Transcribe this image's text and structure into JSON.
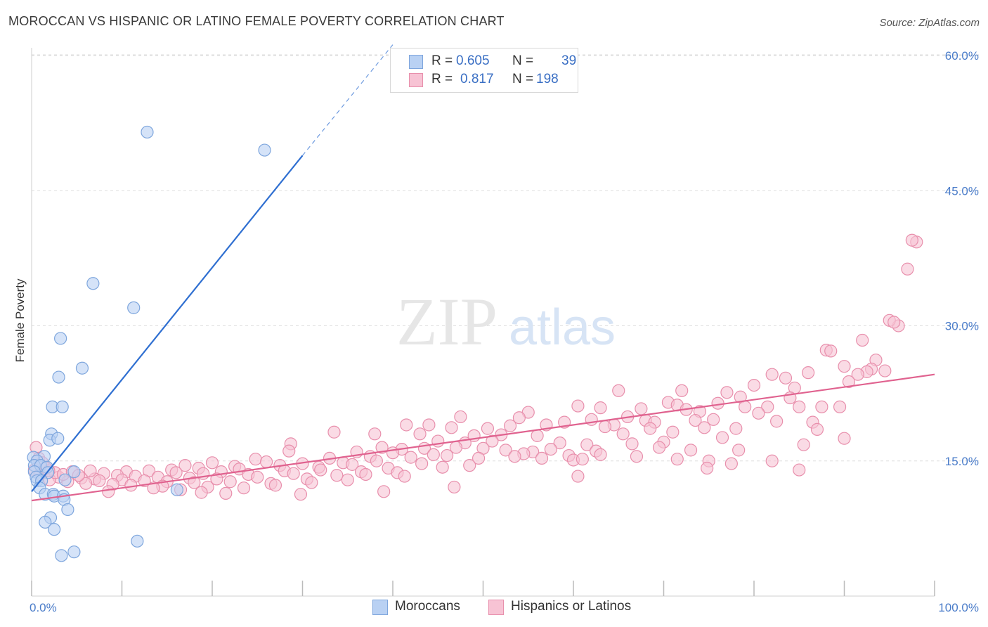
{
  "title": "MOROCCAN VS HISPANIC OR LATINO FEMALE POVERTY CORRELATION CHART",
  "source": "Source: ZipAtlas.com",
  "watermark": {
    "zip": "ZIP",
    "atlas": "atlas"
  },
  "colors": {
    "blue_fill": "#b9d1f3",
    "blue_stroke": "#7ea6dd",
    "blue_line": "#2f6fd1",
    "pink_fill": "#f7c3d4",
    "pink_stroke": "#e88fac",
    "pink_line": "#e0628f",
    "tick_text": "#4a7cc9",
    "grid": "#dddddd"
  },
  "legend": {
    "rows": [
      {
        "r_label": "R =",
        "r_value": "0.605",
        "n_label": "N =",
        "n_value": "39"
      },
      {
        "r_label": "R =",
        "r_value": "0.817",
        "n_label": "N =",
        "n_value": "198"
      }
    ]
  },
  "bottom_legend": [
    "Moroccans",
    "Hispanics or Latinos"
  ],
  "chart_data": {
    "type": "scatter",
    "title": "MOROCCAN VS HISPANIC OR LATINO FEMALE POVERTY CORRELATION CHART",
    "xlabel": "",
    "ylabel": "Female Poverty",
    "xlim": [
      0,
      100
    ],
    "ylim": [
      0,
      60
    ],
    "x_tick_labels": [
      "0.0%",
      "100.0%"
    ],
    "y_ticks": [
      15,
      30,
      45,
      60
    ],
    "y_tick_labels": [
      "15.0%",
      "30.0%",
      "45.0%",
      "60.0%"
    ],
    "grid": "horizontal dashed",
    "legend_position": "top-center",
    "series": [
      {
        "name": "Moroccans",
        "color": "#b9d1f3",
        "r": 0.605,
        "n": 39,
        "trend": {
          "x": [
            0.0,
            30.0
          ],
          "y": [
            11.6,
            48.9
          ],
          "dashed_to": [
            40.0,
            61.2
          ]
        },
        "points": [
          [
            12.8,
            51.5
          ],
          [
            25.8,
            49.5
          ],
          [
            6.8,
            34.7
          ],
          [
            11.3,
            32.0
          ],
          [
            3.2,
            28.6
          ],
          [
            5.6,
            25.3
          ],
          [
            3.0,
            24.3
          ],
          [
            2.3,
            21.0
          ],
          [
            3.4,
            21.0
          ],
          [
            2.2,
            18.0
          ],
          [
            2.0,
            17.3
          ],
          [
            2.9,
            17.5
          ],
          [
            1.4,
            15.5
          ],
          [
            0.2,
            15.4
          ],
          [
            0.6,
            15.0
          ],
          [
            0.3,
            14.5
          ],
          [
            1.0,
            14.5
          ],
          [
            1.7,
            14.3
          ],
          [
            0.3,
            13.8
          ],
          [
            1.8,
            13.7
          ],
          [
            4.7,
            13.8
          ],
          [
            0.5,
            13.2
          ],
          [
            0.6,
            12.8
          ],
          [
            1.1,
            12.8
          ],
          [
            3.7,
            12.9
          ],
          [
            0.9,
            12.0
          ],
          [
            1.5,
            11.3
          ],
          [
            2.4,
            11.3
          ],
          [
            2.5,
            11.1
          ],
          [
            3.5,
            11.1
          ],
          [
            3.6,
            10.7
          ],
          [
            4.0,
            9.6
          ],
          [
            2.1,
            8.7
          ],
          [
            1.5,
            8.2
          ],
          [
            2.5,
            7.4
          ],
          [
            11.7,
            6.1
          ],
          [
            4.7,
            4.9
          ],
          [
            3.3,
            4.5
          ],
          [
            16.1,
            11.8
          ]
        ]
      },
      {
        "name": "Hispanics or Latinos",
        "color": "#f7c3d4",
        "r": 0.817,
        "n": 198,
        "trend": {
          "x": [
            0.0,
            100.0
          ],
          "y": [
            10.6,
            24.6
          ]
        },
        "points": [
          [
            98.0,
            39.3
          ],
          [
            97.5,
            39.5
          ],
          [
            97.0,
            36.3
          ],
          [
            96.0,
            30.0
          ],
          [
            95.0,
            30.6
          ],
          [
            95.5,
            30.4
          ],
          [
            92.0,
            28.4
          ],
          [
            88.0,
            27.3
          ],
          [
            88.5,
            27.2
          ],
          [
            93.5,
            26.2
          ],
          [
            90.0,
            25.5
          ],
          [
            93.0,
            25.2
          ],
          [
            94.5,
            25.0
          ],
          [
            92.5,
            24.9
          ],
          [
            91.5,
            24.6
          ],
          [
            86.0,
            24.8
          ],
          [
            82.0,
            24.6
          ],
          [
            83.5,
            24.2
          ],
          [
            80.0,
            23.4
          ],
          [
            84.5,
            23.1
          ],
          [
            90.5,
            23.8
          ],
          [
            65.0,
            22.8
          ],
          [
            72.0,
            22.8
          ],
          [
            77.0,
            22.6
          ],
          [
            78.5,
            22.1
          ],
          [
            84.0,
            22.0
          ],
          [
            70.5,
            21.5
          ],
          [
            71.5,
            21.2
          ],
          [
            76.0,
            21.4
          ],
          [
            79.0,
            21.0
          ],
          [
            81.5,
            21.0
          ],
          [
            85.0,
            21.0
          ],
          [
            87.5,
            21.0
          ],
          [
            89.5,
            21.0
          ],
          [
            72.5,
            20.7
          ],
          [
            60.5,
            21.1
          ],
          [
            63.0,
            20.9
          ],
          [
            67.5,
            20.8
          ],
          [
            74.0,
            20.5
          ],
          [
            80.5,
            20.3
          ],
          [
            55.0,
            20.4
          ],
          [
            47.5,
            19.9
          ],
          [
            54.0,
            19.8
          ],
          [
            62.0,
            19.6
          ],
          [
            66.0,
            19.9
          ],
          [
            68.0,
            19.5
          ],
          [
            69.0,
            19.3
          ],
          [
            75.5,
            19.6
          ],
          [
            82.5,
            19.4
          ],
          [
            44.0,
            19.0
          ],
          [
            59.0,
            19.3
          ],
          [
            64.5,
            19.0
          ],
          [
            73.5,
            19.5
          ],
          [
            86.5,
            19.3
          ],
          [
            41.5,
            19.0
          ],
          [
            46.5,
            18.7
          ],
          [
            50.5,
            18.6
          ],
          [
            53.0,
            18.9
          ],
          [
            57.0,
            19.0
          ],
          [
            63.5,
            18.8
          ],
          [
            68.5,
            18.6
          ],
          [
            74.5,
            18.7
          ],
          [
            78.0,
            18.6
          ],
          [
            87.0,
            18.5
          ],
          [
            33.5,
            18.2
          ],
          [
            38.0,
            18.0
          ],
          [
            43.0,
            18.0
          ],
          [
            49.0,
            17.8
          ],
          [
            52.0,
            17.9
          ],
          [
            56.0,
            17.8
          ],
          [
            65.5,
            18.0
          ],
          [
            71.0,
            18.2
          ],
          [
            76.5,
            17.6
          ],
          [
            45.0,
            17.2
          ],
          [
            48.0,
            17.0
          ],
          [
            51.0,
            17.2
          ],
          [
            58.5,
            17.0
          ],
          [
            61.5,
            16.8
          ],
          [
            66.5,
            16.9
          ],
          [
            70.0,
            17.1
          ],
          [
            85.5,
            16.8
          ],
          [
            90.0,
            17.5
          ],
          [
            28.7,
            16.9
          ],
          [
            38.8,
            16.5
          ],
          [
            41.0,
            16.3
          ],
          [
            43.5,
            16.4
          ],
          [
            47.0,
            16.5
          ],
          [
            50.0,
            16.4
          ],
          [
            52.5,
            16.2
          ],
          [
            55.5,
            16.0
          ],
          [
            57.5,
            16.3
          ],
          [
            62.5,
            16.1
          ],
          [
            69.5,
            16.5
          ],
          [
            73.0,
            16.2
          ],
          [
            78.3,
            16.2
          ],
          [
            28.5,
            16.1
          ],
          [
            36.0,
            16.0
          ],
          [
            40.0,
            15.9
          ],
          [
            44.5,
            15.7
          ],
          [
            54.5,
            15.8
          ],
          [
            59.5,
            15.6
          ],
          [
            63.0,
            15.7
          ],
          [
            67.0,
            15.5
          ],
          [
            71.5,
            15.2
          ],
          [
            75.0,
            15.0
          ],
          [
            24.8,
            15.2
          ],
          [
            33.0,
            15.3
          ],
          [
            37.5,
            15.5
          ],
          [
            42.0,
            15.4
          ],
          [
            46.0,
            15.6
          ],
          [
            49.5,
            15.3
          ],
          [
            53.5,
            15.5
          ],
          [
            56.5,
            15.3
          ],
          [
            60.0,
            15.1
          ],
          [
            74.8,
            14.2
          ],
          [
            20.0,
            14.8
          ],
          [
            26.0,
            14.9
          ],
          [
            30.0,
            14.7
          ],
          [
            34.5,
            14.8
          ],
          [
            38.2,
            15.0
          ],
          [
            43.2,
            14.7
          ],
          [
            48.5,
            14.5
          ],
          [
            17.0,
            14.5
          ],
          [
            22.5,
            14.4
          ],
          [
            27.5,
            14.5
          ],
          [
            31.8,
            14.3
          ],
          [
            35.5,
            14.6
          ],
          [
            39.5,
            14.2
          ],
          [
            45.5,
            14.3
          ],
          [
            15.5,
            14.0
          ],
          [
            18.5,
            14.2
          ],
          [
            23.0,
            14.1
          ],
          [
            28.0,
            13.9
          ],
          [
            32.0,
            14.0
          ],
          [
            36.5,
            13.8
          ],
          [
            40.5,
            13.7
          ],
          [
            10.5,
            13.8
          ],
          [
            13.0,
            13.9
          ],
          [
            16.0,
            13.7
          ],
          [
            19.0,
            13.6
          ],
          [
            21.0,
            13.8
          ],
          [
            24.0,
            13.5
          ],
          [
            29.0,
            13.6
          ],
          [
            33.8,
            13.4
          ],
          [
            37.0,
            13.5
          ],
          [
            41.3,
            13.3
          ],
          [
            8.0,
            13.6
          ],
          [
            9.5,
            13.4
          ],
          [
            11.5,
            13.3
          ],
          [
            14.0,
            13.2
          ],
          [
            17.5,
            13.1
          ],
          [
            20.5,
            13.0
          ],
          [
            25.0,
            13.2
          ],
          [
            30.5,
            13.0
          ],
          [
            35.0,
            12.9
          ],
          [
            3.0,
            13.2
          ],
          [
            5.5,
            13.1
          ],
          [
            7.0,
            13.0
          ],
          [
            10.0,
            12.9
          ],
          [
            12.5,
            12.8
          ],
          [
            15.0,
            12.7
          ],
          [
            18.0,
            12.6
          ],
          [
            22.0,
            12.7
          ],
          [
            26.5,
            12.5
          ],
          [
            31.0,
            12.6
          ],
          [
            2.0,
            12.9
          ],
          [
            4.0,
            12.7
          ],
          [
            6.0,
            12.5
          ],
          [
            9.0,
            12.4
          ],
          [
            11.0,
            12.3
          ],
          [
            14.5,
            12.2
          ],
          [
            19.5,
            12.1
          ],
          [
            23.5,
            12.0
          ],
          [
            27.0,
            12.3
          ],
          [
            13.5,
            12.0
          ],
          [
            16.5,
            11.8
          ],
          [
            18.8,
            11.5
          ],
          [
            21.5,
            11.4
          ],
          [
            8.5,
            11.6
          ],
          [
            29.8,
            11.3
          ],
          [
            39.0,
            11.6
          ],
          [
            46.8,
            12.1
          ],
          [
            0.5,
            16.5
          ],
          [
            0.8,
            15.3
          ],
          [
            1.2,
            14.8
          ],
          [
            1.6,
            14.2
          ],
          [
            2.6,
            13.7
          ],
          [
            3.5,
            13.5
          ],
          [
            4.5,
            13.8
          ],
          [
            5.2,
            13.4
          ],
          [
            6.5,
            13.9
          ],
          [
            7.5,
            12.8
          ],
          [
            0.3,
            14.0
          ],
          [
            0.9,
            13.5
          ],
          [
            1.9,
            13.9
          ],
          [
            60.5,
            13.3
          ],
          [
            85.0,
            14.0
          ],
          [
            82.0,
            15.0
          ],
          [
            61.0,
            15.2
          ],
          [
            77.5,
            14.7
          ]
        ]
      }
    ]
  }
}
